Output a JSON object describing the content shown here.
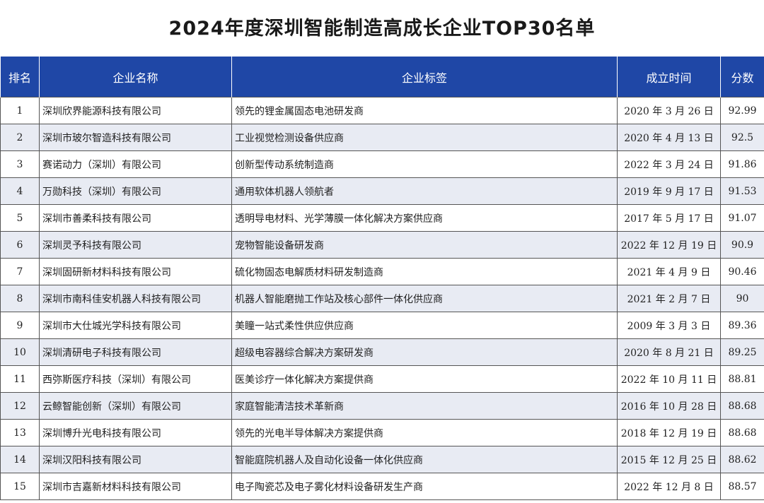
{
  "header": {
    "title": "2024年度深圳智能制造高成长企业TOP30名单"
  },
  "table": {
    "columns": [
      "排名",
      "企业名称",
      "企业标签",
      "成立时间",
      "分数"
    ],
    "rows": [
      [
        "1",
        "深圳欣界能源科技有限公司",
        "领先的锂金属固态电池研发商",
        "2020 年 3 月 26 日",
        "92.99"
      ],
      [
        "2",
        "深圳市玻尔智造科技有限公司",
        "工业视觉检测设备供应商",
        "2020 年 4 月 13 日",
        "92.5"
      ],
      [
        "3",
        "赛诺动力（深圳）有限公司",
        "创新型传动系统制造商",
        "2022 年 3 月 24 日",
        "91.86"
      ],
      [
        "4",
        "万勋科技（深圳）有限公司",
        "通用软体机器人领航者",
        "2019 年 9 月 17 日",
        "91.53"
      ],
      [
        "5",
        "深圳市善柔科技有限公司",
        "透明导电材料、光学薄膜一体化解决方案供应商",
        "2017 年 5 月 17 日",
        "91.07"
      ],
      [
        "6",
        "深圳灵予科技有限公司",
        "宠物智能设备研发商",
        "2022 年 12 月 19 日",
        "90.9"
      ],
      [
        "7",
        "深圳固研新材料科技有限公司",
        "硫化物固态电解质材料研发制造商",
        "2021 年 4 月 9 日",
        "90.46"
      ],
      [
        "8",
        "深圳市南科佳安机器人科技有限公司",
        "机器人智能磨抛工作站及核心部件一体化供应商",
        "2021 年 2 月 7 日",
        "90"
      ],
      [
        "9",
        "深圳市大仕城光学科技有限公司",
        "美瞳一站式柔性供应供应商",
        "2009 年 3 月 3 日",
        "89.36"
      ],
      [
        "10",
        "深圳清研电子科技有限公司",
        "超级电容器综合解决方案研发商",
        "2020 年 8 月 21 日",
        "89.25"
      ],
      [
        "11",
        "西弥斯医疗科技（深圳）有限公司",
        "医美诊疗一体化解决方案提供商",
        "2022 年 10 月 11 日",
        "88.81"
      ],
      [
        "12",
        "云鲸智能创新（深圳）有限公司",
        "家庭智能清洁技术革新商",
        "2016 年 10 月 28 日",
        "88.68"
      ],
      [
        "13",
        "深圳博升光电科技有限公司",
        "领先的光电半导体解决方案提供商",
        "2018 年 12 月 19 日",
        "88.68"
      ],
      [
        "14",
        "深圳汉阳科技有限公司",
        "智能庭院机器人及自动化设备一体化供应商",
        "2015 年 12 月 25 日",
        "88.62"
      ],
      [
        "15",
        "深圳市吉嘉新材料科技有限公司",
        "电子陶瓷芯及电子雾化材料设备研发生产商",
        "2022 年 12 月 8 日",
        "88.57"
      ]
    ]
  }
}
